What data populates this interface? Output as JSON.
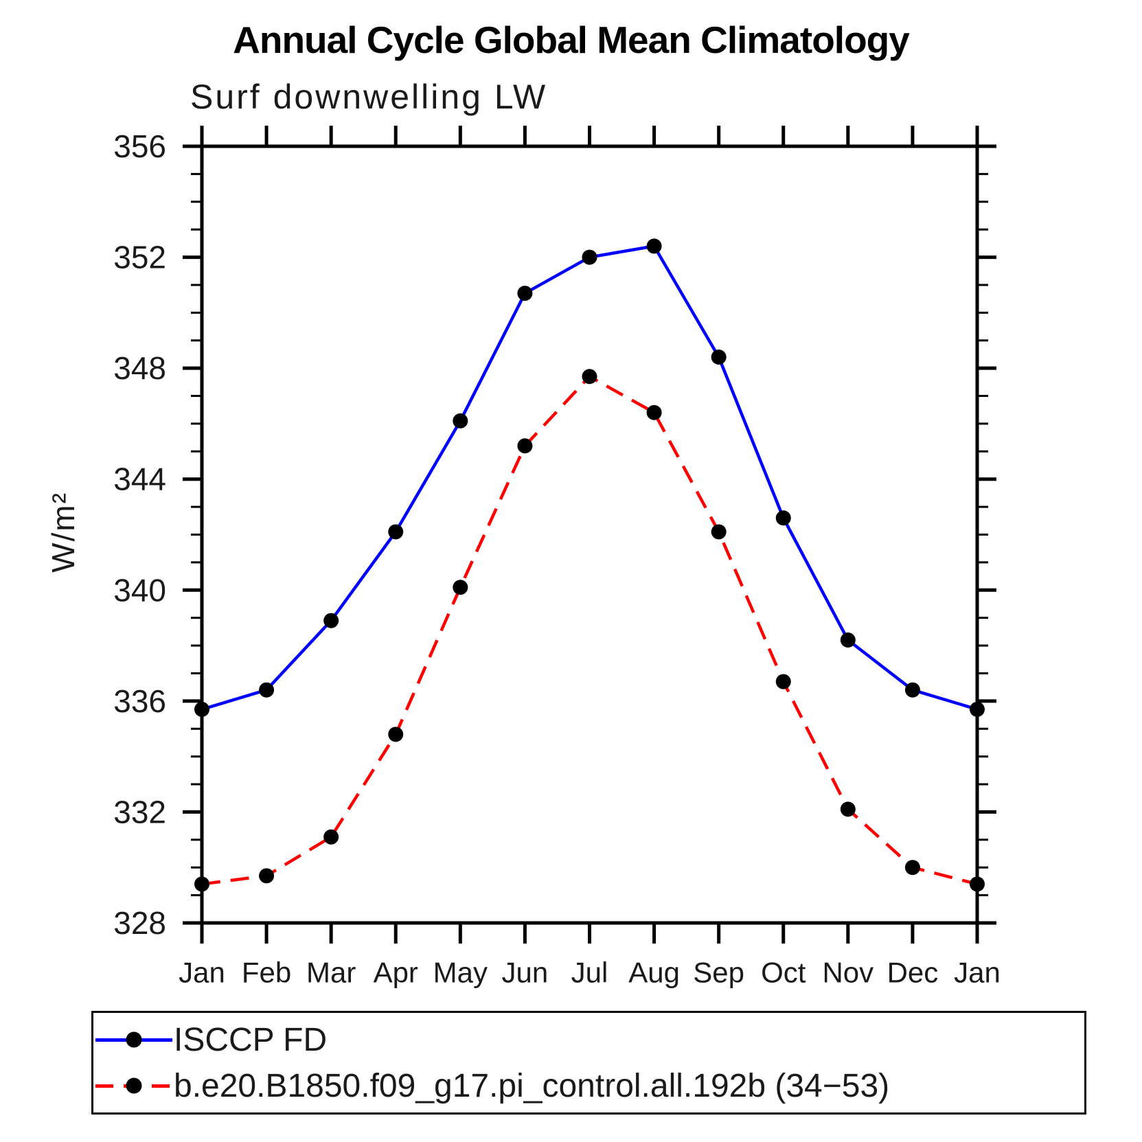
{
  "title": "Annual Cycle Global Mean Climatology",
  "subtitle": "Surf downwelling LW",
  "y_axis_label": "W/m²",
  "legend": {
    "items": [
      {
        "label": "ISCCP FD",
        "color": "#0000ff",
        "style": "solid"
      },
      {
        "label": "b.e20.B1850.f09_g17.pi_control.all.192b (34−53)",
        "color": "#ff0000",
        "style": "dashed"
      }
    ]
  },
  "chart_data": {
    "type": "line",
    "title": "Annual Cycle Global Mean Climatology",
    "subtitle": "Surf downwelling LW",
    "ylabel": "W/m²",
    "categories": [
      "Jan",
      "Feb",
      "Mar",
      "Apr",
      "May",
      "Jun",
      "Jul",
      "Aug",
      "Sep",
      "Oct",
      "Nov",
      "Dec",
      "Jan"
    ],
    "series": [
      {
        "name": "ISCCP FD",
        "color": "#0000ff",
        "dash": "solid",
        "values": [
          335.7,
          336.4,
          338.9,
          342.1,
          346.1,
          350.7,
          352.0,
          352.4,
          348.4,
          342.6,
          338.2,
          336.4,
          335.7
        ]
      },
      {
        "name": "b.e20.B1850.f09_g17.pi_control.all.192b (34−53)",
        "color": "#ff0000",
        "dash": "dashed",
        "values": [
          329.4,
          329.7,
          331.1,
          334.8,
          340.1,
          345.2,
          347.7,
          346.4,
          342.1,
          336.7,
          332.1,
          330.0,
          329.4
        ]
      }
    ],
    "ylim": [
      328,
      356
    ],
    "yticks_labeled": [
      328,
      332,
      336,
      340,
      344,
      348,
      352,
      356
    ],
    "ytick_minor_step": 1,
    "marker_color": "#000000",
    "grid": false,
    "legend_position": "bottom"
  }
}
